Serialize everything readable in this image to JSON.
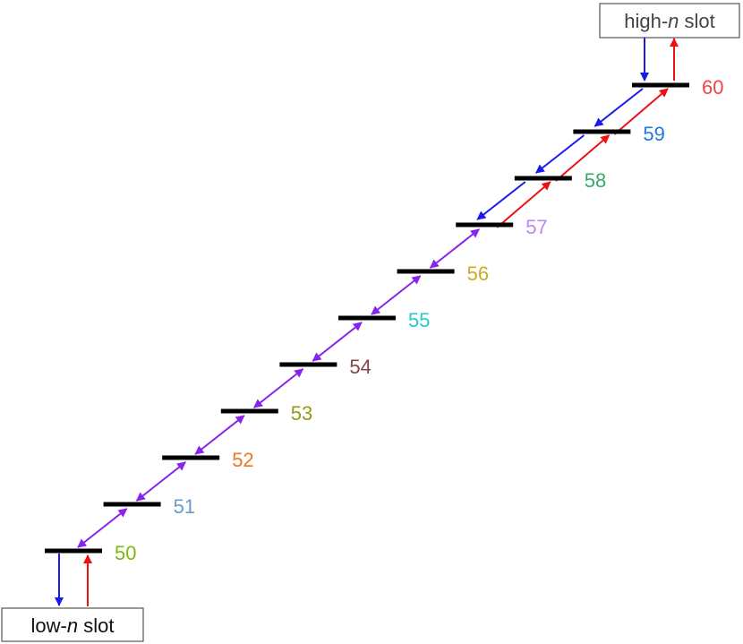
{
  "levels": [
    {
      "label": "50",
      "color": "#77bb11"
    },
    {
      "label": "51",
      "color": "#6699cc"
    },
    {
      "label": "52",
      "color": "#ee7722"
    },
    {
      "label": "53",
      "color": "#999911"
    },
    {
      "label": "54",
      "color": "#884444"
    },
    {
      "label": "55",
      "color": "#22cccc"
    },
    {
      "label": "56",
      "color": "#ccaa22"
    },
    {
      "label": "57",
      "color": "#bb88ee"
    },
    {
      "label": "58",
      "color": "#33aa66"
    },
    {
      "label": "59",
      "color": "#2277dd"
    },
    {
      "label": "60",
      "color": "#ee4444"
    }
  ],
  "high_slot": {
    "prefix": "high-",
    "variable": "n",
    "suffix": " slot"
  },
  "low_slot": {
    "prefix": "low-",
    "variable": "n",
    "suffix": " slot"
  }
}
